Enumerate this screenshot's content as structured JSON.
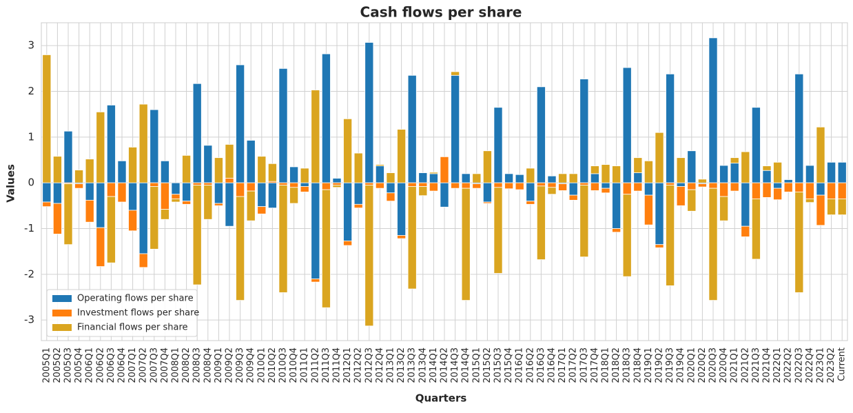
{
  "chart_data": {
    "type": "stacked_bar",
    "title": "Cash flows per share",
    "xlabel": "Quarters",
    "ylabel": "Values",
    "categories": [
      "2005Q1",
      "2005Q2",
      "2005Q3",
      "2005Q4",
      "2006Q1",
      "2006Q2",
      "2006Q3",
      "2006Q4",
      "2007Q1",
      "2007Q2",
      "2007Q3",
      "2007Q4",
      "2008Q1",
      "2008Q2",
      "2008Q3",
      "2008Q4",
      "2009Q1",
      "2009Q2",
      "2009Q3",
      "2009Q4",
      "2010Q1",
      "2010Q2",
      "2010Q3",
      "2010Q4",
      "2011Q1",
      "2011Q2",
      "2011Q3",
      "2011Q4",
      "2012Q1",
      "2012Q2",
      "2012Q3",
      "2012Q4",
      "2013Q1",
      "2013Q2",
      "2013Q3",
      "2013Q4",
      "2014Q1",
      "2014Q2",
      "2014Q3",
      "2014Q4",
      "2015Q1",
      "2015Q2",
      "2015Q3",
      "2015Q4",
      "2016Q1",
      "2016Q2",
      "2016Q3",
      "2016Q4",
      "2017Q1",
      "2017Q2",
      "2017Q3",
      "2017Q4",
      "2018Q1",
      "2018Q2",
      "2018Q3",
      "2018Q4",
      "2019Q1",
      "2019Q2",
      "2019Q3",
      "2019Q4",
      "2020Q1",
      "2020Q2",
      "2020Q3",
      "2020Q4",
      "2021Q1",
      "2021Q2",
      "2021Q3",
      "2021Q4",
      "2022Q1",
      "2022Q2",
      "2022Q3",
      "2022Q4",
      "2023Q1",
      "2023Q2",
      "Current"
    ],
    "series": [
      {
        "name": "Operating flows per share",
        "color": "#1f77b4",
        "values": [
          -0.42,
          -0.45,
          1.13,
          -0.02,
          -0.38,
          -0.98,
          1.7,
          0.48,
          -0.6,
          -1.55,
          1.6,
          0.48,
          -0.25,
          -0.4,
          2.17,
          0.82,
          -0.45,
          -0.95,
          2.58,
          0.93,
          -0.52,
          -0.55,
          2.5,
          0.35,
          -0.08,
          -2.1,
          2.82,
          0.1,
          -1.27,
          -0.47,
          3.07,
          0.37,
          -0.22,
          -1.15,
          2.35,
          0.22,
          0.2,
          -0.53,
          2.35,
          0.2,
          -0.02,
          -0.42,
          1.65,
          0.2,
          0.18,
          -0.4,
          2.1,
          0.15,
          -0.02,
          -0.27,
          2.27,
          0.2,
          -0.12,
          -1.0,
          2.52,
          0.22,
          -0.27,
          -1.35,
          2.38,
          -0.08,
          0.7,
          -0.02,
          3.17,
          0.38,
          0.43,
          -0.95,
          1.65,
          0.27,
          -0.12,
          0.07,
          2.38,
          0.38,
          -0.27,
          0.45,
          0.45
        ]
      },
      {
        "name": "Investment flows per share",
        "color": "#ff7f0e",
        "values": [
          -0.1,
          -0.67,
          -0.02,
          -0.1,
          -0.48,
          -0.85,
          -0.3,
          -0.42,
          -0.45,
          -0.3,
          -0.08,
          -0.58,
          -0.1,
          -0.07,
          -0.05,
          -0.05,
          -0.05,
          0.1,
          -0.3,
          -0.18,
          -0.16,
          0.03,
          -0.05,
          -0.1,
          -0.12,
          -0.07,
          -0.15,
          -0.05,
          -0.1,
          -0.08,
          -0.05,
          -0.12,
          -0.18,
          -0.07,
          -0.08,
          -0.08,
          -0.18,
          0.57,
          -0.12,
          -0.12,
          -0.1,
          -0.03,
          -0.1,
          -0.13,
          -0.15,
          -0.07,
          -0.07,
          -0.1,
          -0.15,
          -0.11,
          -0.05,
          -0.17,
          -0.1,
          -0.08,
          -0.25,
          -0.18,
          -0.65,
          -0.07,
          -0.05,
          -0.42,
          -0.15,
          -0.07,
          -0.12,
          -0.3,
          -0.18,
          -0.23,
          -0.35,
          -0.32,
          -0.25,
          -0.2,
          -0.2,
          -0.35,
          -0.66,
          -0.35,
          -0.35
        ]
      },
      {
        "name": "Financial flows per share",
        "color": "#daa520",
        "values": [
          2.8,
          0.58,
          -1.33,
          0.28,
          0.52,
          1.55,
          -1.45,
          0,
          0.78,
          1.72,
          -1.37,
          -0.22,
          -0.07,
          0.6,
          -2.18,
          -0.75,
          0.55,
          0.74,
          -2.27,
          -0.65,
          0.58,
          0.39,
          -2.35,
          -0.35,
          0.32,
          2.03,
          -2.58,
          -0.05,
          1.4,
          0.65,
          -3.08,
          0.03,
          0.22,
          1.17,
          -2.24,
          -0.2,
          0.03,
          0,
          0.08,
          -2.45,
          0.2,
          0.7,
          -1.88,
          0,
          0,
          0.32,
          -1.61,
          -0.15,
          0.2,
          0.2,
          -1.57,
          0.17,
          0.4,
          0.37,
          -1.8,
          0.33,
          0.48,
          1.1,
          -2.2,
          0.55,
          -0.47,
          0.08,
          -2.45,
          -0.53,
          0.12,
          0.68,
          -1.32,
          0.1,
          0.45,
          0,
          -2.2,
          -0.08,
          1.22,
          -0.35,
          -0.35
        ]
      }
    ],
    "ylim": [
      -3.45,
      3.5
    ],
    "yticks": [
      -3,
      -2,
      -1,
      0,
      1,
      2,
      3
    ],
    "grid": true,
    "legend": "lower left"
  }
}
